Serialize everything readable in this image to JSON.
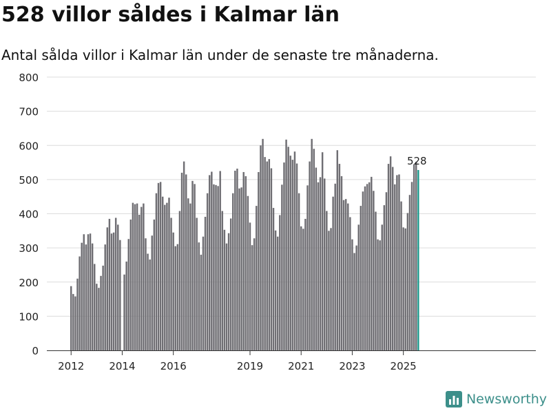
{
  "title": "528 villor såldes i Kalmar län",
  "subtitle": "Antal sålda villor i Kalmar län under de senaste tre månaderna.",
  "brand": "Newsworthy",
  "chart_data": {
    "type": "bar",
    "title": "528 villor såldes i Kalmar län",
    "subtitle": "Antal sålda villor i Kalmar län under de senaste tre månaderna.",
    "xlabel": "",
    "ylabel": "",
    "ylim": [
      0,
      800
    ],
    "yticks": [
      0,
      100,
      200,
      300,
      400,
      500,
      600,
      700,
      800
    ],
    "xtick_labels": [
      "2012",
      "2014",
      "2016",
      "2019",
      "2021",
      "2023",
      "2025"
    ],
    "bar_color": "#6f6e73",
    "highlight_color": "#1e9a8d",
    "grid": true,
    "highlight_label": "528",
    "series": [
      {
        "name": "2012",
        "values": [
          188,
          165,
          158,
          210,
          275,
          315,
          340,
          310,
          340,
          342,
          313,
          253
        ]
      },
      {
        "name": "2013",
        "values": [
          195,
          183,
          218,
          248,
          310,
          360,
          385,
          342,
          345,
          388,
          368,
          323
        ]
      },
      {
        "name": "2014",
        "values": [
          null,
          222,
          260,
          326,
          383,
          432,
          428,
          430,
          397,
          420,
          430,
          328
        ]
      },
      {
        "name": "2015",
        "values": [
          283,
          266,
          336,
          383,
          460,
          490,
          493,
          450,
          426,
          432,
          447,
          388
        ]
      },
      {
        "name": "2016",
        "values": [
          345,
          305,
          311,
          408,
          520,
          553,
          515,
          445,
          430,
          496,
          487,
          388
        ]
      },
      {
        "name": "2017",
        "values": [
          316,
          280,
          333,
          391,
          460,
          513,
          523,
          486,
          484,
          481,
          525,
          408
        ]
      },
      {
        "name": "2018",
        "values": [
          353,
          313,
          343,
          386,
          460,
          526,
          532,
          474,
          477,
          522,
          510,
          452
        ]
      },
      {
        "name": "2019",
        "values": [
          374,
          308,
          328,
          423,
          522,
          600,
          619,
          566,
          553,
          560,
          533,
          417
        ]
      },
      {
        "name": "2020",
        "values": [
          351,
          333,
          396,
          485,
          550,
          617,
          596,
          570,
          558,
          582,
          547,
          460
        ]
      },
      {
        "name": "2021",
        "values": [
          363,
          356,
          385,
          483,
          553,
          619,
          590,
          535,
          492,
          507,
          580,
          503
        ]
      },
      {
        "name": "2022",
        "values": [
          408,
          350,
          358,
          450,
          488,
          586,
          546,
          510,
          440,
          443,
          430,
          390
        ]
      },
      {
        "name": "2023",
        "values": [
          325,
          285,
          307,
          368,
          423,
          465,
          480,
          487,
          492,
          508,
          467,
          406
        ]
      },
      {
        "name": "2024",
        "values": [
          325,
          322,
          368,
          425,
          463,
          546,
          568,
          537,
          486,
          513,
          515,
          436
        ]
      },
      {
        "name": "2025",
        "values": [
          360,
          357,
          402,
          455,
          493,
          545,
          552,
          528
        ]
      }
    ]
  }
}
